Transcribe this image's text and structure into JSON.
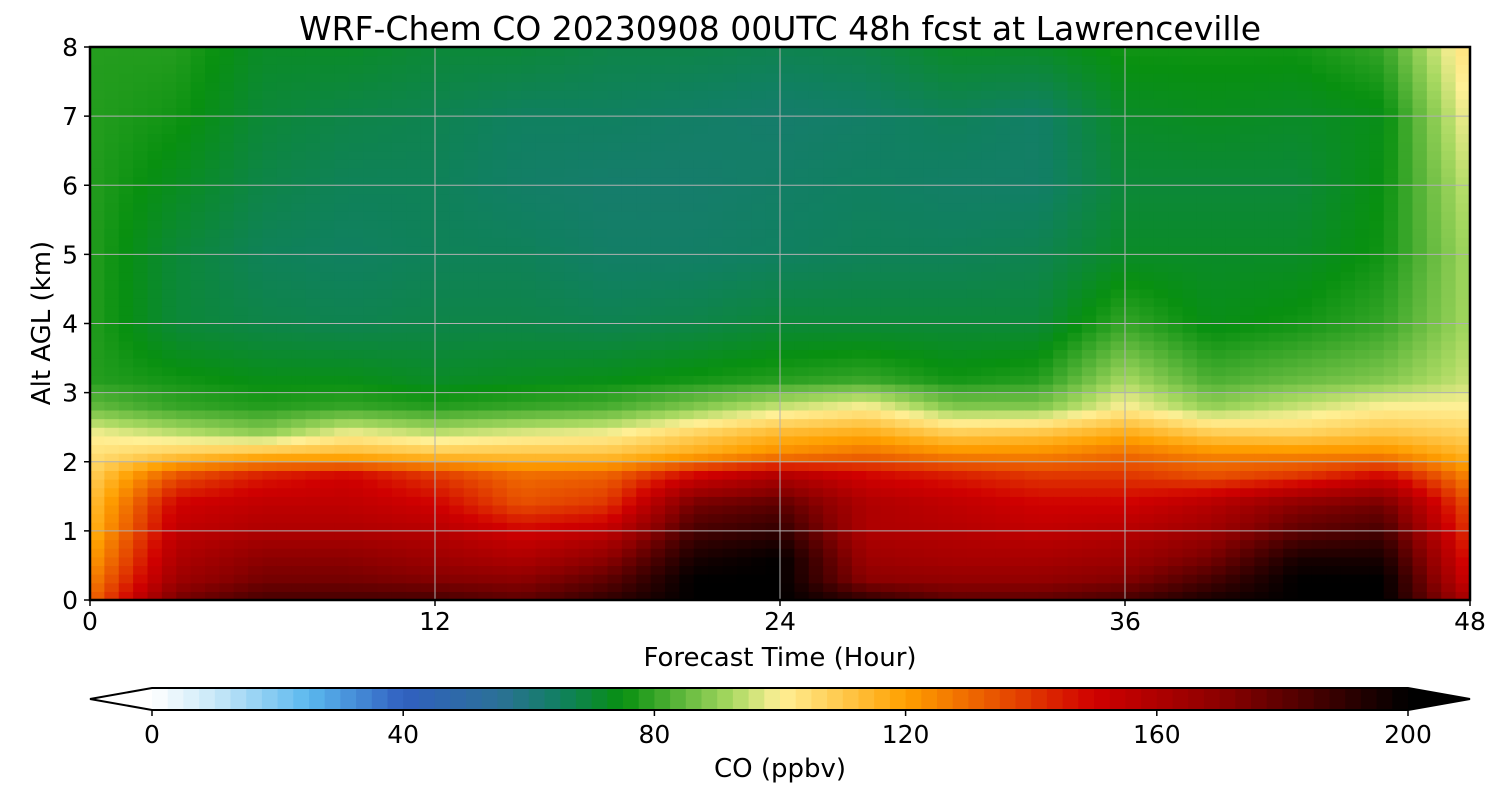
{
  "chart_data": {
    "type": "heatmap",
    "title": "WRF-Chem CO  20230908 00UTC 48h fcst at Lawrenceville",
    "xlabel": "Forecast Time (Hour)",
    "ylabel": "Alt AGL (km)",
    "xlim": [
      0,
      48
    ],
    "ylim": [
      0,
      8
    ],
    "xticks": [
      "0",
      "12",
      "24",
      "36",
      "48"
    ],
    "yticks": [
      "0",
      "1",
      "2",
      "3",
      "4",
      "5",
      "6",
      "7",
      "8"
    ],
    "grid": true,
    "colorbar": {
      "label": "CO  (ppbv)",
      "ticks": [
        "0",
        "40",
        "80",
        "120",
        "160",
        "200"
      ],
      "range": [
        0,
        200
      ],
      "extend": "both"
    },
    "x_hours": [
      0,
      3,
      6,
      9,
      12,
      15,
      18,
      21,
      24,
      27,
      30,
      33,
      36,
      39,
      42,
      45,
      48
    ],
    "z_levels_km": [
      0.0,
      0.3,
      0.6,
      1.0,
      1.4,
      1.8,
      2.1,
      2.4,
      2.8,
      3.2,
      4.0,
      5.0,
      6.0,
      7.0,
      8.0
    ],
    "values_ppbv": [
      [
        130,
        175,
        185,
        185,
        185,
        180,
        190,
        200,
        200,
        190,
        180,
        180,
        185,
        195,
        200,
        200,
        160
      ],
      [
        125,
        165,
        175,
        175,
        172,
        170,
        180,
        200,
        200,
        170,
        168,
        168,
        172,
        185,
        200,
        200,
        150
      ],
      [
        120,
        160,
        170,
        170,
        165,
        160,
        170,
        195,
        200,
        165,
        162,
        162,
        165,
        175,
        195,
        195,
        145
      ],
      [
        115,
        155,
        160,
        160,
        158,
        150,
        155,
        185,
        190,
        160,
        158,
        155,
        158,
        165,
        180,
        185,
        140
      ],
      [
        112,
        150,
        155,
        155,
        150,
        135,
        140,
        175,
        180,
        160,
        155,
        150,
        150,
        158,
        170,
        175,
        135
      ],
      [
        108,
        135,
        145,
        150,
        140,
        130,
        132,
        150,
        160,
        150,
        145,
        140,
        140,
        135,
        140,
        150,
        125
      ],
      [
        104,
        110,
        115,
        115,
        112,
        112,
        112,
        118,
        125,
        130,
        125,
        125,
        130,
        125,
        125,
        125,
        115
      ],
      [
        100,
        95,
        90,
        100,
        95,
        98,
        100,
        108,
        115,
        118,
        110,
        112,
        118,
        110,
        108,
        112,
        108
      ],
      [
        85,
        80,
        78,
        80,
        78,
        80,
        82,
        88,
        95,
        100,
        88,
        88,
        100,
        90,
        95,
        100,
        100
      ],
      [
        78,
        76,
        74,
        74,
        72,
        73,
        74,
        76,
        78,
        80,
        76,
        78,
        92,
        82,
        85,
        88,
        95
      ],
      [
        78,
        70,
        68,
        67,
        68,
        68,
        67,
        68,
        70,
        70,
        70,
        70,
        80,
        74,
        76,
        80,
        92
      ],
      [
        78,
        70,
        66,
        65,
        66,
        66,
        64,
        64,
        65,
        66,
        66,
        67,
        72,
        72,
        72,
        76,
        92
      ],
      [
        78,
        73,
        68,
        66,
        66,
        64,
        63,
        63,
        64,
        65,
        64,
        64,
        70,
        70,
        70,
        75,
        95
      ],
      [
        78,
        76,
        70,
        68,
        67,
        65,
        65,
        64,
        63,
        64,
        66,
        64,
        72,
        73,
        72,
        74,
        100
      ],
      [
        78,
        78,
        72,
        72,
        70,
        70,
        68,
        68,
        67,
        68,
        72,
        72,
        76,
        76,
        76,
        80,
        105
      ]
    ],
    "colorscale": [
      "#ffffff",
      "#c8e8f8",
      "#5ab8ee",
      "#3060c0",
      "#2c7098",
      "#108060",
      "#089010",
      "#a6d860",
      "#fff096",
      "#ffa000",
      "#d00000",
      "#8c0000",
      "#000000"
    ],
    "colorscale_values": [
      0,
      10,
      25,
      40,
      55,
      65,
      75,
      92,
      100,
      120,
      150,
      170,
      200
    ]
  }
}
